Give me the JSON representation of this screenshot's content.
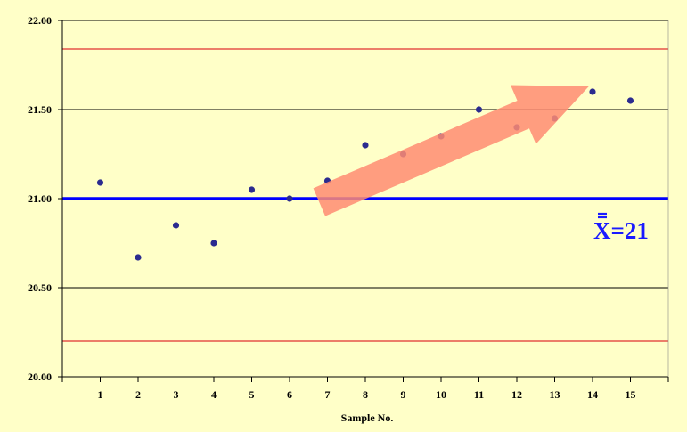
{
  "chart_data": {
    "type": "scatter",
    "title": "",
    "xlabel": "Sample No.",
    "ylabel": "",
    "x": [
      1,
      2,
      3,
      4,
      5,
      6,
      7,
      8,
      9,
      10,
      11,
      12,
      13,
      14,
      15
    ],
    "series": [
      {
        "values": [
          21.09,
          20.67,
          20.85,
          20.75,
          21.05,
          21.0,
          21.1,
          21.3,
          21.25,
          21.35,
          21.5,
          21.4,
          21.45,
          21.6,
          21.55
        ]
      }
    ],
    "xlim": [
      0,
      16
    ],
    "ylim": [
      20.0,
      22.0
    ],
    "y_ticks": [
      "20.00",
      "20.50",
      "21.00",
      "21.50",
      "22.00"
    ],
    "x_ticks": [
      "1",
      "2",
      "3",
      "4",
      "5",
      "6",
      "7",
      "8",
      "9",
      "10",
      "11",
      "12",
      "13",
      "14",
      "15"
    ],
    "center_line": 21.0,
    "upper_control_limit": 21.84,
    "lower_control_limit": 20.2,
    "center_line_label": "X=21",
    "trend_arrow": {
      "from": [
        7,
        21.0
      ],
      "to": [
        13.9,
        21.63
      ]
    },
    "grid": "horizontal",
    "colors": {
      "background": "#ffffc8",
      "points": "#2b2b8f",
      "center_line": "#0000ff",
      "control_limits": "#e03030",
      "gridlines": "#000000",
      "arrow": "#ff8c72",
      "label": "#1a1aff"
    }
  }
}
